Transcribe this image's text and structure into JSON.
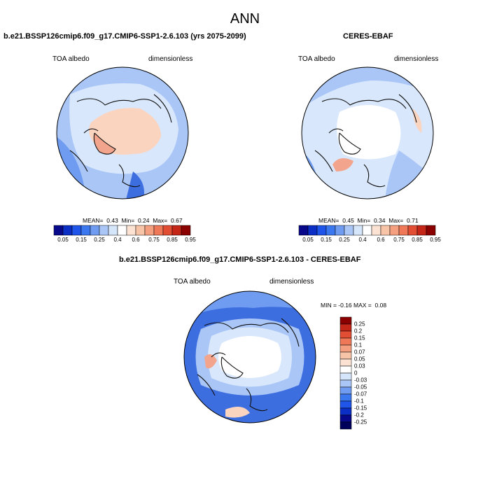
{
  "page_title": "ANN",
  "colors": {
    "coast": "#111111",
    "blue_dark": "#3d6ee0",
    "blue_mid": "#6f9cf0",
    "blue_light": "#a9c6f7",
    "blue_pale": "#d8e7fb",
    "peach": "#fbd4c0",
    "salmon": "#f2a58c",
    "land_white": "#ffffff"
  },
  "panels": {
    "top_left": {
      "title": "b.e21.BSSP126cmip6.f09_g17.CMIP6-SSP1-2.6.103 (yrs 2075-2099)",
      "variable": "TOA albedo",
      "units": "dimensionless",
      "stats": {
        "mean_label": "MEAN=",
        "mean": "0.43",
        "min_label": "Min=",
        "min": "0.24",
        "max_label": "Max=",
        "max": "0.67"
      }
    },
    "top_right": {
      "title": "CERES-EBAF",
      "variable": "TOA albedo",
      "units": "dimensionless",
      "stats": {
        "mean_label": "MEAN=",
        "mean": "0.45",
        "min_label": "Min=",
        "min": "0.34",
        "max_label": "Max=",
        "max": "0.71"
      }
    },
    "bottom": {
      "title": "b.e21.BSSP126cmip6.f09_g17.CMIP6-SSP1-2.6.103 - CERES-EBAF",
      "variable": "TOA albedo",
      "units": "dimensionless",
      "stats": {
        "min_label": "MIN =",
        "min": "-0.16",
        "max_label": "MAX =",
        "max": "0.08"
      }
    }
  },
  "colorbar_abs": {
    "labels": [
      "0.05",
      "0.15",
      "0.25",
      "0.4",
      "0.6",
      "0.75",
      "0.85",
      "0.95"
    ],
    "colors": [
      "#08088a",
      "#0b2ec4",
      "#1f55e8",
      "#3b78f0",
      "#6f9cf0",
      "#a9c6f7",
      "#d5e6fb",
      "#ffffff",
      "#fbe2d2",
      "#f8c4a8",
      "#f4a080",
      "#ee7858",
      "#e24e34",
      "#c42618",
      "#8b0000"
    ]
  },
  "colorbar_diff": {
    "labels": [
      "0.25",
      "0.2",
      "0.15",
      "0.1",
      "0.07",
      "0.05",
      "0.03",
      "0",
      "-0.03",
      "-0.05",
      "-0.07",
      "-0.1",
      "-0.15",
      "-0.2",
      "-0.25"
    ],
    "colors": [
      "#8b0000",
      "#c42618",
      "#e24e34",
      "#ee7858",
      "#f4a080",
      "#f8c4a8",
      "#fbe2d2",
      "#ffffff",
      "#d5e6fb",
      "#a9c6f7",
      "#6f9cf0",
      "#3b78f0",
      "#1f55e8",
      "#0b2ec4",
      "#08088a",
      "#00005a"
    ]
  }
}
